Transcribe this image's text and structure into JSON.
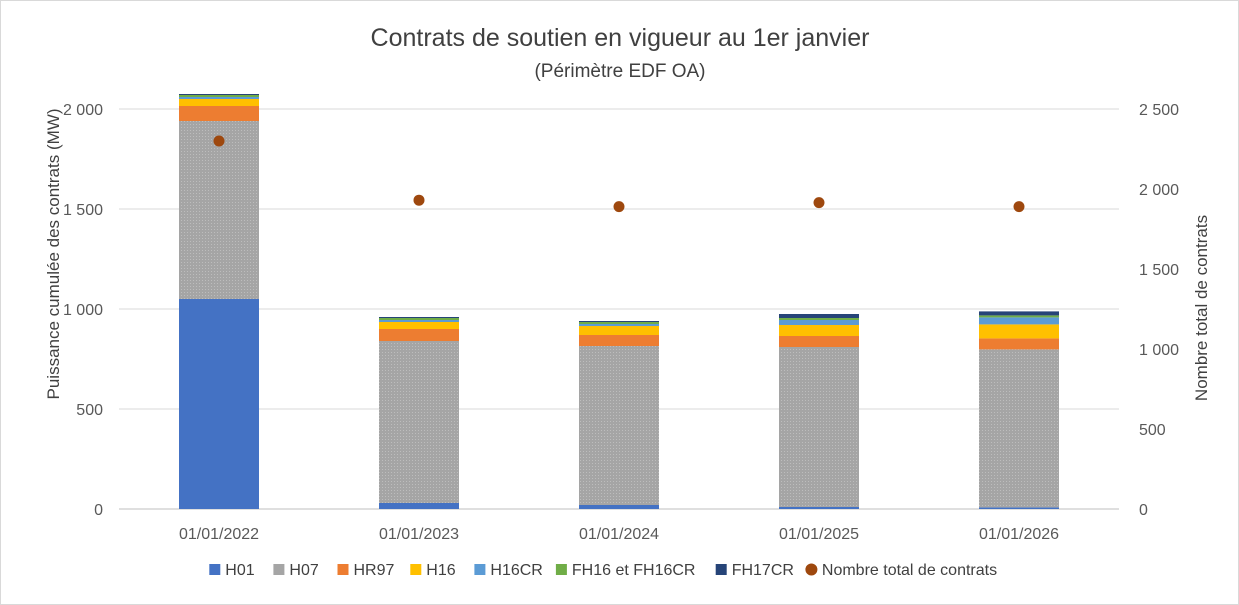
{
  "chart_data": {
    "type": "bar",
    "stacked": true,
    "title": "Contrats de soutien en vigueur au 1er janvier",
    "subtitle": "(Périmètre EDF OA)",
    "ylabel": "Puissance cumulée des contrats (MW)",
    "y2label": "Nombre total de contrats",
    "ylim": [
      0,
      2000
    ],
    "y_ticks": [
      0,
      500,
      1000,
      1500,
      2000
    ],
    "y_tick_labels": [
      "0",
      "500",
      "1 000",
      "1 500",
      "2 000"
    ],
    "y2lim": [
      0,
      2500
    ],
    "y2_ticks": [
      0,
      500,
      1000,
      1500,
      2000,
      2500
    ],
    "y2_tick_labels": [
      "0",
      "500",
      "1 000",
      "1 500",
      "2 000",
      "2 500"
    ],
    "grid": true,
    "legend_position": "bottom",
    "categories": [
      "01/01/2022",
      "01/01/2023",
      "01/01/2024",
      "01/01/2025",
      "01/01/2026"
    ],
    "series": [
      {
        "name": "H01",
        "color": "#4472C4",
        "pattern": "solid",
        "values": [
          1050,
          30,
          20,
          10,
          8
        ]
      },
      {
        "name": "H07",
        "color": "#A5A5A5",
        "pattern": "dotted",
        "values": [
          890,
          810,
          795,
          800,
          790
        ]
      },
      {
        "name": "HR97",
        "color": "#ED7D31",
        "pattern": "solid",
        "values": [
          75,
          60,
          55,
          55,
          55
        ]
      },
      {
        "name": "H16",
        "color": "#FFC000",
        "pattern": "solid",
        "values": [
          35,
          35,
          45,
          55,
          70
        ]
      },
      {
        "name": "H16CR",
        "color": "#5B9BD5",
        "pattern": "solid",
        "values": [
          10,
          10,
          10,
          25,
          35
        ]
      },
      {
        "name": "FH16 et FH16CR",
        "color": "#70AD47",
        "pattern": "solid",
        "values": [
          10,
          10,
          10,
          10,
          10
        ]
      },
      {
        "name": "FH17CR",
        "color": "#264478",
        "pattern": "solid",
        "values": [
          5,
          5,
          5,
          20,
          20
        ]
      }
    ],
    "line_series": {
      "name": "Nombre total de contrats",
      "color": "#9E480E",
      "axis": "secondary",
      "marker": "circle",
      "values": [
        2300,
        1930,
        1890,
        1915,
        1890
      ]
    }
  }
}
